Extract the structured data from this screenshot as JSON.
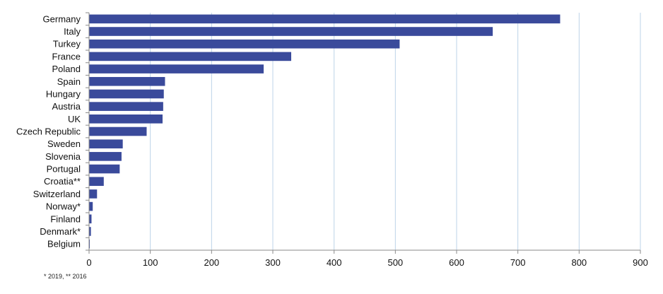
{
  "chart_data": {
    "type": "bar",
    "orientation": "horizontal",
    "title": "",
    "xlabel": "",
    "ylabel": "",
    "categories": [
      "Germany",
      "Italy",
      "Turkey",
      "France",
      "Poland",
      "Spain",
      "Hungary",
      "Austria",
      "UK",
      "Czech Republic",
      "Sweden",
      "Slovenia",
      "Portugal",
      "Croatia**",
      "Switzerland",
      "Norway*",
      "Finland",
      "Denmark*",
      "Belgium"
    ],
    "values": [
      769,
      659,
      507,
      330,
      285,
      124,
      122,
      121,
      120,
      94,
      55,
      53,
      50,
      24,
      13,
      6,
      4,
      3,
      1
    ],
    "xlim": [
      0,
      900
    ],
    "xticks": [
      0,
      100,
      200,
      300,
      400,
      500,
      600,
      700,
      800,
      900
    ],
    "grid": "vertical",
    "legend": "none",
    "colors": {
      "bar": "#3a4a9b",
      "grid": "#bcd3e8",
      "axis": "#8a8a8a",
      "text": "#111111"
    },
    "footnote": "* 2019, ** 2016"
  }
}
